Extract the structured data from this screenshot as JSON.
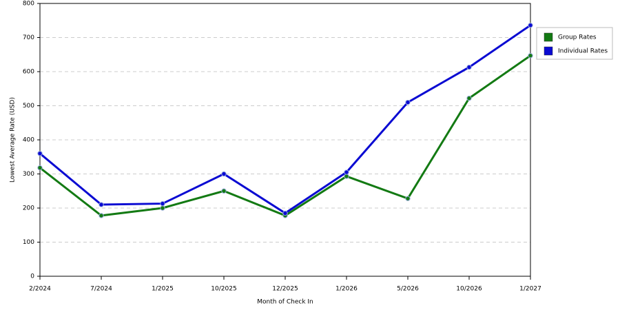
{
  "chart_data": {
    "type": "line",
    "x_label": "Month of Check In",
    "y_label": "Lowest Average Rate (USD)",
    "categories": [
      "2/2024",
      "7/2024",
      "1/2025",
      "10/2025",
      "12/2025",
      "1/2026",
      "5/2026",
      "10/2026",
      "1/2027"
    ],
    "series": [
      {
        "name": "Group Rates",
        "color": "#137a13",
        "values": [
          318,
          178,
          200,
          250,
          178,
          293,
          228,
          522,
          647
        ]
      },
      {
        "name": "Individual Rates",
        "color": "#0a0ad2",
        "values": [
          360,
          210,
          213,
          300,
          185,
          305,
          510,
          613,
          736
        ]
      }
    ],
    "ylim": [
      0,
      800
    ],
    "yticks": [
      0,
      100,
      200,
      300,
      400,
      500,
      600,
      700,
      800
    ],
    "grid": true,
    "legend": "right"
  }
}
